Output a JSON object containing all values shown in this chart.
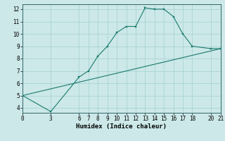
{
  "xlabel": "Humidex (Indice chaleur)",
  "bg_color": "#cce8e8",
  "line_color": "#1a7a6e",
  "curve1_x": [
    0,
    3,
    6,
    7,
    8,
    9,
    10,
    11,
    12,
    13,
    14,
    15,
    16,
    17,
    18,
    20,
    21
  ],
  "curve1_y": [
    5.0,
    3.7,
    6.5,
    7.0,
    8.2,
    9.0,
    10.1,
    10.6,
    10.6,
    12.1,
    12.0,
    12.0,
    11.4,
    10.0,
    9.0,
    8.8,
    8.8
  ],
  "curve2_x": [
    0,
    21
  ],
  "curve2_y": [
    5.0,
    8.8
  ],
  "xticks": [
    0,
    3,
    6,
    7,
    8,
    9,
    10,
    11,
    12,
    13,
    14,
    15,
    16,
    17,
    18,
    20,
    21
  ],
  "yticks": [
    4,
    5,
    6,
    7,
    8,
    9,
    10,
    11,
    12
  ],
  "xlim": [
    0,
    21
  ],
  "ylim": [
    3.6,
    12.4
  ],
  "grid_color": "#aad4d4",
  "tick_fontsize": 5.5,
  "xlabel_fontsize": 6.5
}
